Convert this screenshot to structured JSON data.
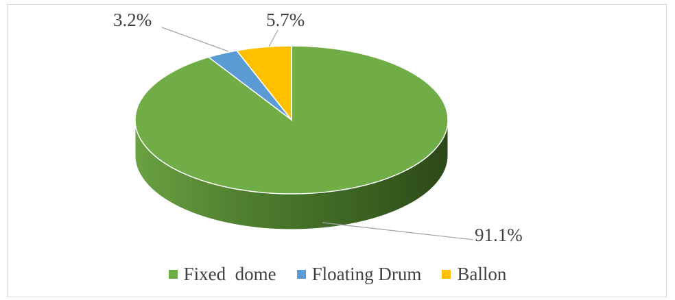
{
  "chart_data": {
    "type": "pie",
    "style": "3d",
    "categories": [
      "Fixed  dome",
      "Floating Drum",
      "Ballon"
    ],
    "values": [
      91.1,
      3.2,
      5.7
    ],
    "labels": [
      "91.1%",
      "3.2%",
      "5.7%"
    ],
    "colors": [
      "#70ad47",
      "#5b9bd5",
      "#ffc000"
    ],
    "legend_position": "bottom"
  }
}
